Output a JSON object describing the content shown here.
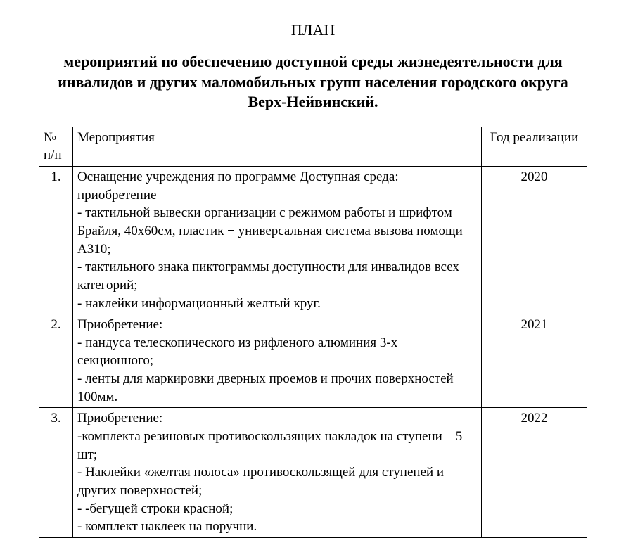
{
  "title": "ПЛАН",
  "subtitle": "мероприятий по обеспечению доступной среды жизнедеятельности для инвалидов и других маломобильных групп населения городского округа Верх-Нейвинский.",
  "table": {
    "header": {
      "num_line1": "№",
      "num_line2": "п/п",
      "activity": "Мероприятия",
      "year": "Год реализации"
    },
    "rows": [
      {
        "num": "1.",
        "activity": "Оснащение учреждения по программе Доступная среда: приобретение\n- тактильной вывески организации с режимом работы и шрифтом Брайля, 40х60см, пластик + универсальная система вызова помощи А310;\n- тактильного знака пиктограммы доступности для инвалидов всех категорий;\n- наклейки информационный желтый круг.",
        "year": "2020"
      },
      {
        "num": "2.",
        "activity": "Приобретение:\n- пандуса телескопического  из рифленого алюминия 3-х секционного;\n- ленты для маркировки дверных проемов и прочих поверхностей 100мм.",
        "year": "2021"
      },
      {
        "num": "3.",
        "activity": "Приобретение:\n-комплекта резиновых противоскользящих накладок на ступени – 5 шт;\n- Наклейки «желтая полоса» противоскользящей для ступеней и других поверхностей;\n- -бегущей строки  красной;\n- комплект наклеек на поручни.",
        "year": "2022"
      }
    ]
  }
}
